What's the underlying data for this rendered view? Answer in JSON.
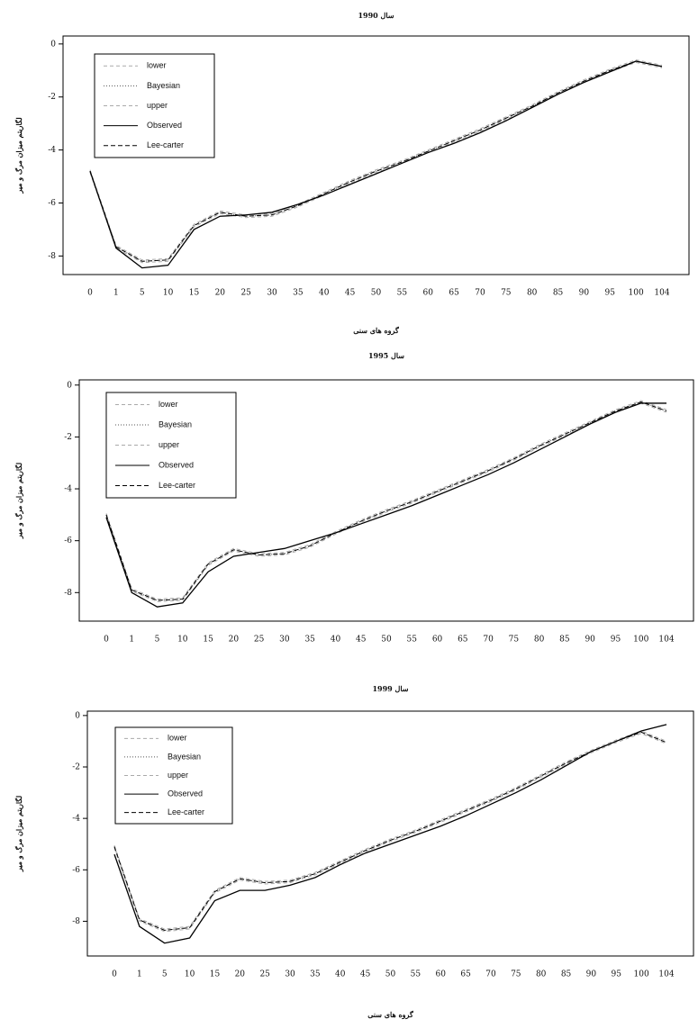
{
  "chart_data": [
    {
      "type": "line",
      "title": "سال 1990",
      "y_label": "لگاریتم میزان مرگ و میر",
      "x_label": "گروه های سنی",
      "categories": [
        "0",
        "1",
        "5",
        "10",
        "15",
        "20",
        "25",
        "30",
        "35",
        "40",
        "45",
        "50",
        "55",
        "60",
        "65",
        "70",
        "75",
        "80",
        "85",
        "90",
        "95",
        "100",
        "104"
      ],
      "ylim": [
        -8.7,
        0.3
      ],
      "yticks": [
        -8,
        -6,
        -4,
        -2,
        0
      ],
      "legend": "upper-left",
      "series": [
        {
          "name": "lower",
          "color": "#aaaaaa",
          "dash": "4 3",
          "values": [
            -4.85,
            -7.7,
            -8.25,
            -8.2,
            -6.9,
            -6.4,
            -6.55,
            -6.5,
            -6.15,
            -5.7,
            -5.25,
            -4.85,
            -4.5,
            -4.1,
            -3.7,
            -3.3,
            -2.85,
            -2.4,
            -1.9,
            -1.45,
            -1.05,
            -0.7,
            -0.9
          ]
        },
        {
          "name": "Bayesian",
          "color": "#555555",
          "dash": "1 2",
          "values": [
            -4.8,
            -7.65,
            -8.2,
            -8.15,
            -6.85,
            -6.35,
            -6.5,
            -6.45,
            -6.1,
            -5.65,
            -5.2,
            -4.8,
            -4.45,
            -4.05,
            -3.65,
            -3.25,
            -2.8,
            -2.35,
            -1.85,
            -1.4,
            -1.0,
            -0.65,
            -0.85
          ]
        },
        {
          "name": "upper",
          "color": "#aaaaaa",
          "dash": "4 3",
          "values": [
            -4.75,
            -7.6,
            -8.15,
            -8.1,
            -6.8,
            -6.3,
            -6.45,
            -6.4,
            -6.05,
            -5.6,
            -5.15,
            -4.75,
            -4.4,
            -4.0,
            -3.6,
            -3.2,
            -2.75,
            -2.3,
            -1.8,
            -1.35,
            -0.95,
            -0.6,
            -0.8
          ]
        },
        {
          "name": "Observed",
          "color": "#000000",
          "dash": "",
          "values": [
            -4.8,
            -7.7,
            -8.45,
            -8.35,
            -7.0,
            -6.5,
            -6.45,
            -6.35,
            -6.05,
            -5.7,
            -5.3,
            -4.9,
            -4.5,
            -4.1,
            -3.75,
            -3.35,
            -2.9,
            -2.4,
            -1.9,
            -1.45,
            -1.05,
            -0.65,
            -0.85
          ]
        },
        {
          "name": "Lee-carter",
          "color": "#000000",
          "dash": "5 3",
          "values": [
            -4.8,
            -7.65,
            -8.2,
            -8.15,
            -6.85,
            -6.35,
            -6.5,
            -6.45,
            -6.1,
            -5.65,
            -5.2,
            -4.8,
            -4.45,
            -4.05,
            -3.65,
            -3.25,
            -2.8,
            -2.35,
            -1.85,
            -1.4,
            -1.0,
            -0.65,
            -0.85
          ]
        }
      ]
    },
    {
      "type": "line",
      "title": "سال 1995",
      "y_label": "لگاریتم میزان مرگ و میر",
      "categories": [
        "0",
        "1",
        "5",
        "10",
        "15",
        "20",
        "25",
        "30",
        "35",
        "40",
        "45",
        "50",
        "55",
        "60",
        "65",
        "70",
        "75",
        "80",
        "85",
        "90",
        "95",
        "100",
        "104"
      ],
      "ylim": [
        -9.1,
        0.2
      ],
      "yticks": [
        -8,
        -6,
        -4,
        -2,
        0
      ],
      "legend": "upper-left",
      "series": [
        {
          "name": "lower",
          "color": "#aaaaaa",
          "dash": "4 3",
          "values": [
            -5.05,
            -7.95,
            -8.35,
            -8.3,
            -6.95,
            -6.4,
            -6.6,
            -6.55,
            -6.25,
            -5.75,
            -5.3,
            -4.9,
            -4.55,
            -4.15,
            -3.75,
            -3.35,
            -2.9,
            -2.4,
            -1.95,
            -1.5,
            -1.05,
            -0.7,
            -1.05
          ]
        },
        {
          "name": "Bayesian",
          "color": "#555555",
          "dash": "1 2",
          "values": [
            -5.0,
            -7.9,
            -8.3,
            -8.25,
            -6.9,
            -6.35,
            -6.55,
            -6.5,
            -6.2,
            -5.7,
            -5.25,
            -4.85,
            -4.5,
            -4.1,
            -3.7,
            -3.3,
            -2.85,
            -2.35,
            -1.9,
            -1.45,
            -1.0,
            -0.65,
            -1.0
          ]
        },
        {
          "name": "upper",
          "color": "#aaaaaa",
          "dash": "4 3",
          "values": [
            -4.95,
            -7.85,
            -8.25,
            -8.2,
            -6.85,
            -6.3,
            -6.5,
            -6.45,
            -6.15,
            -5.65,
            -5.2,
            -4.8,
            -4.45,
            -4.05,
            -3.65,
            -3.25,
            -2.8,
            -2.3,
            -1.85,
            -1.4,
            -0.95,
            -0.6,
            -0.95
          ]
        },
        {
          "name": "Observed",
          "color": "#000000",
          "dash": "",
          "values": [
            -5.1,
            -8.0,
            -8.55,
            -8.4,
            -7.2,
            -6.6,
            -6.45,
            -6.3,
            -6.0,
            -5.7,
            -5.35,
            -5.0,
            -4.65,
            -4.25,
            -3.85,
            -3.45,
            -3.0,
            -2.5,
            -2.0,
            -1.5,
            -1.05,
            -0.7,
            -0.7
          ]
        },
        {
          "name": "Lee-carter",
          "color": "#000000",
          "dash": "5 3",
          "values": [
            -5.0,
            -7.9,
            -8.3,
            -8.25,
            -6.9,
            -6.35,
            -6.55,
            -6.5,
            -6.2,
            -5.7,
            -5.25,
            -4.85,
            -4.5,
            -4.1,
            -3.7,
            -3.3,
            -2.85,
            -2.35,
            -1.9,
            -1.45,
            -1.0,
            -0.65,
            -1.0
          ]
        }
      ]
    },
    {
      "type": "line",
      "title": "سال 1999",
      "y_label": "لگاریتم میزان مرگ و میر",
      "x_label": "گروه های سنی",
      "categories": [
        "0",
        "1",
        "5",
        "10",
        "15",
        "20",
        "25",
        "30",
        "35",
        "40",
        "45",
        "50",
        "55",
        "60",
        "65",
        "70",
        "75",
        "80",
        "85",
        "90",
        "95",
        "100",
        "104"
      ],
      "ylim": [
        -9.35,
        0.17
      ],
      "yticks": [
        -8,
        -6,
        -4,
        -2,
        0
      ],
      "legend": "upper-left",
      "series": [
        {
          "name": "lower",
          "color": "#aaaaaa",
          "dash": "4 3",
          "values": [
            -5.15,
            -8.0,
            -8.4,
            -8.3,
            -6.9,
            -6.4,
            -6.55,
            -6.5,
            -6.2,
            -5.75,
            -5.3,
            -4.9,
            -4.55,
            -4.15,
            -3.75,
            -3.35,
            -2.9,
            -2.4,
            -1.9,
            -1.45,
            -1.05,
            -0.7,
            -1.1
          ]
        },
        {
          "name": "Bayesian",
          "color": "#555555",
          "dash": "1 2",
          "values": [
            -5.1,
            -7.95,
            -8.35,
            -8.25,
            -6.85,
            -6.35,
            -6.5,
            -6.45,
            -6.15,
            -5.7,
            -5.25,
            -4.85,
            -4.5,
            -4.1,
            -3.7,
            -3.3,
            -2.85,
            -2.35,
            -1.85,
            -1.4,
            -1.0,
            -0.65,
            -1.05
          ]
        },
        {
          "name": "upper",
          "color": "#aaaaaa",
          "dash": "4 3",
          "values": [
            -5.05,
            -7.9,
            -8.3,
            -8.2,
            -6.8,
            -6.3,
            -6.45,
            -6.4,
            -6.1,
            -5.65,
            -5.2,
            -4.8,
            -4.45,
            -4.05,
            -3.65,
            -3.25,
            -2.8,
            -2.3,
            -1.8,
            -1.35,
            -0.95,
            -0.6,
            -1.0
          ]
        },
        {
          "name": "Observed",
          "color": "#000000",
          "dash": "",
          "values": [
            -5.4,
            -8.2,
            -8.85,
            -8.65,
            -7.2,
            -6.8,
            -6.8,
            -6.6,
            -6.3,
            -5.8,
            -5.35,
            -5.0,
            -4.65,
            -4.3,
            -3.9,
            -3.45,
            -3.0,
            -2.5,
            -1.95,
            -1.4,
            -1.0,
            -0.6,
            -0.35
          ]
        },
        {
          "name": "Lee-carter",
          "color": "#000000",
          "dash": "5 3",
          "values": [
            -5.1,
            -7.95,
            -8.35,
            -8.25,
            -6.85,
            -6.35,
            -6.5,
            -6.45,
            -6.15,
            -5.7,
            -5.25,
            -4.85,
            -4.5,
            -4.1,
            -3.7,
            -3.3,
            -2.85,
            -2.35,
            -1.85,
            -1.4,
            -1.0,
            -0.65,
            -1.05
          ]
        }
      ]
    }
  ]
}
